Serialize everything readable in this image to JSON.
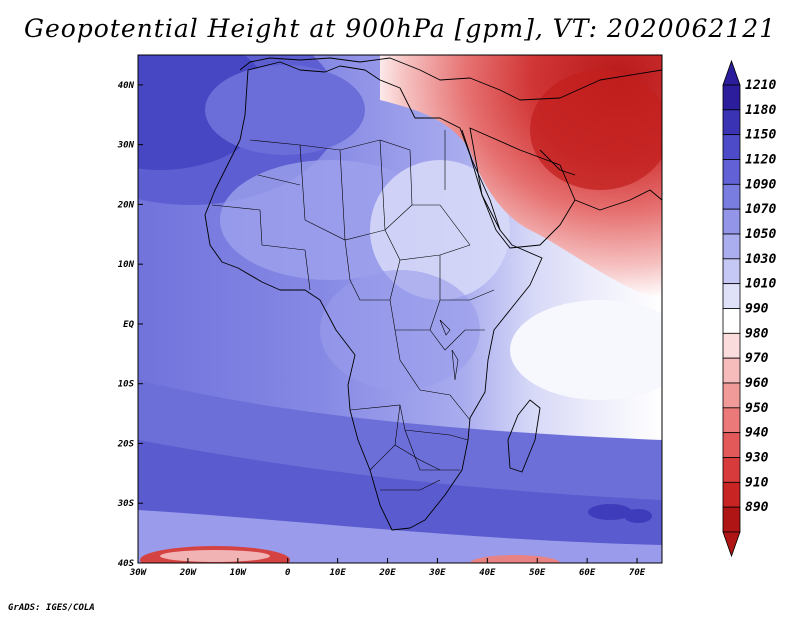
{
  "title": "Geopotential Height at 900hPa [gpm], VT: 2020062121",
  "footer": "GrADS: IGES/COLA",
  "map": {
    "lat_labels": [
      "40N",
      "30N",
      "20N",
      "10N",
      "EQ",
      "10S",
      "20S",
      "30S",
      "40S"
    ],
    "lon_labels": [
      "30W",
      "20W",
      "10W",
      "0",
      "10E",
      "20E",
      "30E",
      "40E",
      "50E",
      "60E",
      "70E"
    ],
    "lat_range": [
      -40,
      45
    ],
    "lon_range": [
      -30,
      75
    ]
  },
  "colorbar": {
    "levels": [
      "1210",
      "1180",
      "1150",
      "1120",
      "1090",
      "1070",
      "1050",
      "1030",
      "1010",
      "990",
      "980",
      "970",
      "960",
      "950",
      "940",
      "930",
      "910",
      "890"
    ],
    "colors": [
      "#2b1d9b",
      "#3a33b4",
      "#4d4bc8",
      "#6262d6",
      "#7a7de0",
      "#9295e8",
      "#aaaeee",
      "#c5c8f4",
      "#dfe1f9",
      "#ffffff",
      "#fbdcdc",
      "#f6bcbc",
      "#f19a9a",
      "#eb7979",
      "#e35959",
      "#d83b3b",
      "#c92424",
      "#b01515"
    ]
  }
}
